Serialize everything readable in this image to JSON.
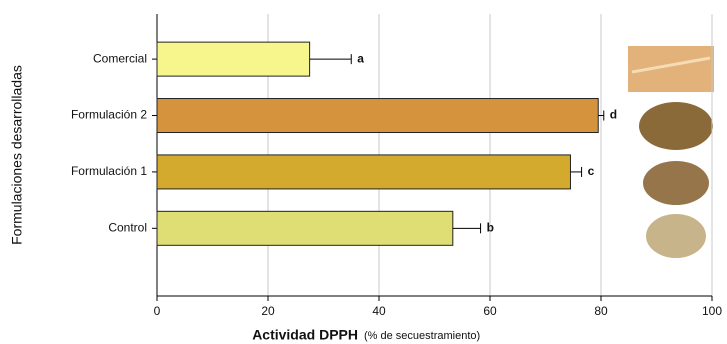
{
  "chart_data": {
    "type": "barh",
    "x_label": "Actividad DPPH",
    "x_label_note": "(% de secuestramiento)",
    "y_label": "Formulaciones desarrolladas",
    "categories": [
      "Comercial",
      "Formulación 2",
      "Formulación 1",
      "Control"
    ],
    "values": [
      27.5,
      79.5,
      74.5,
      53.3
    ],
    "errors": [
      7.5,
      1,
      2,
      5
    ],
    "significance_labels": [
      "a",
      "d",
      "c",
      "b"
    ],
    "colors": [
      "#f6f68c",
      "#d4933c",
      "#d3aa2e",
      "#dede74"
    ],
    "xlim": [
      0,
      100
    ],
    "xticks": [
      0,
      20,
      40,
      60,
      80,
      100
    ],
    "grid": true
  }
}
